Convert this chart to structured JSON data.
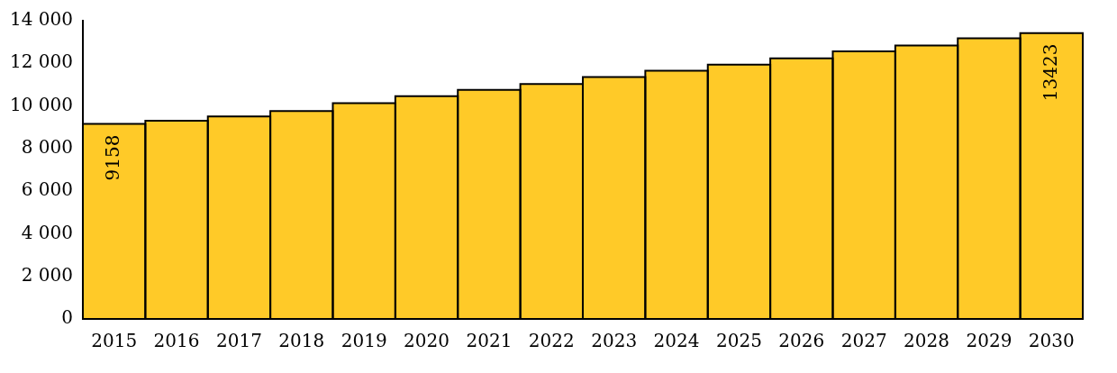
{
  "chart_data": {
    "type": "bar",
    "categories": [
      "2015",
      "2016",
      "2017",
      "2018",
      "2019",
      "2020",
      "2021",
      "2022",
      "2023",
      "2024",
      "2025",
      "2026",
      "2027",
      "2028",
      "2029",
      "2030"
    ],
    "values": [
      9158,
      9300,
      9510,
      9760,
      10130,
      10460,
      10750,
      11030,
      11360,
      11650,
      11940,
      12230,
      12560,
      12840,
      13170,
      13423
    ],
    "value_labels": [
      "9158",
      null,
      null,
      null,
      null,
      null,
      null,
      null,
      null,
      null,
      null,
      null,
      null,
      null,
      null,
      "13423"
    ],
    "color": "#ffca28",
    "ylim": [
      0,
      14000
    ],
    "yticks": [
      0,
      {
        "value": 2000,
        "label": "2 000"
      },
      {
        "value": 4000,
        "label": "4 000"
      },
      {
        "value": 6000,
        "label": "6 000"
      },
      {
        "value": 8000,
        "label": "8 000"
      },
      {
        "value": 10000,
        "label": "10 000"
      },
      {
        "value": 12000,
        "label": "12 000"
      },
      {
        "value": 14000,
        "label": "14 000"
      }
    ],
    "grid": false,
    "legend": false
  }
}
